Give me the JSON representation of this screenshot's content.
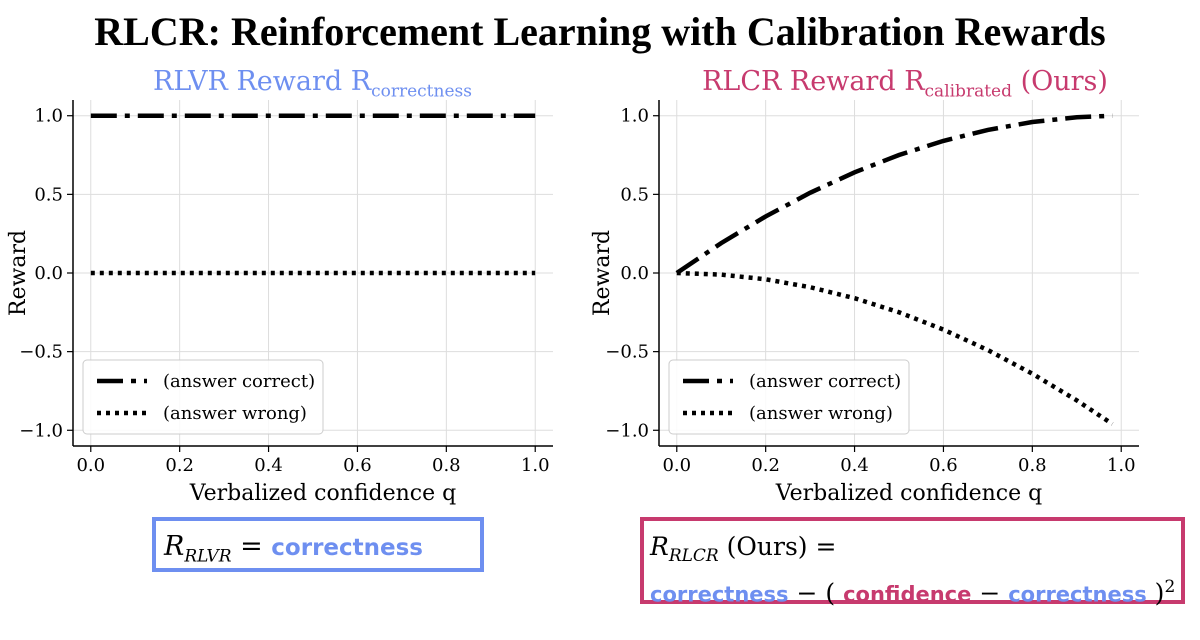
{
  "title": "RLCR: Reinforcement Learning with Calibration Rewards",
  "colors": {
    "blue": "#6e8ff0",
    "pink": "#c73a6e",
    "grid": "#dddddd"
  },
  "chart_data": [
    {
      "type": "line",
      "title_main": "RLVR Reward R",
      "title_sub": "correctness",
      "title_suffix": "",
      "xlabel": "Verbalized confidence q",
      "ylabel": "Reward",
      "xlim": [
        -0.04,
        1.04
      ],
      "ylim": [
        -1.1,
        1.1
      ],
      "xticks": [
        0.0,
        0.2,
        0.4,
        0.6,
        0.8,
        1.0
      ],
      "xtick_labels": [
        "0.0",
        "0.2",
        "0.4",
        "0.6",
        "0.8",
        "1.0"
      ],
      "yticks": [
        -1.0,
        -0.5,
        0.0,
        0.5,
        1.0
      ],
      "ytick_labels": [
        "−1.0",
        "−0.5",
        "0.0",
        "0.5",
        "1.0"
      ],
      "grid": true,
      "legend_position": "lower-left",
      "series": [
        {
          "name": "(answer correct)",
          "style": "dashdot",
          "x": [
            0.0,
            0.2,
            0.4,
            0.6,
            0.8,
            1.0
          ],
          "y": [
            1.0,
            1.0,
            1.0,
            1.0,
            1.0,
            1.0
          ]
        },
        {
          "name": "(answer wrong)",
          "style": "dotted",
          "x": [
            0.0,
            0.2,
            0.4,
            0.6,
            0.8,
            1.0
          ],
          "y": [
            0.0,
            0.0,
            0.0,
            0.0,
            0.0,
            0.0
          ]
        }
      ]
    },
    {
      "type": "line",
      "title_main": "RLCR Reward R",
      "title_sub": "calibrated",
      "title_suffix": " (Ours)",
      "xlabel": "Verbalized confidence q",
      "ylabel": "Reward",
      "xlim": [
        -0.04,
        1.04
      ],
      "ylim": [
        -1.1,
        1.1
      ],
      "xticks": [
        0.0,
        0.2,
        0.4,
        0.6,
        0.8,
        1.0
      ],
      "xtick_labels": [
        "0.0",
        "0.2",
        "0.4",
        "0.6",
        "0.8",
        "1.0"
      ],
      "yticks": [
        -1.0,
        -0.5,
        0.0,
        0.5,
        1.0
      ],
      "ytick_labels": [
        "−1.0",
        "−0.5",
        "0.0",
        "0.5",
        "1.0"
      ],
      "grid": true,
      "legend_position": "lower-left",
      "series": [
        {
          "name": "(answer correct)",
          "style": "dashdot",
          "x": [
            0.0,
            0.1,
            0.2,
            0.3,
            0.4,
            0.5,
            0.6,
            0.7,
            0.8,
            0.9,
            0.98
          ],
          "y": [
            0.0,
            0.19,
            0.36,
            0.51,
            0.64,
            0.75,
            0.84,
            0.91,
            0.96,
            0.99,
            1.0
          ]
        },
        {
          "name": "(answer wrong)",
          "style": "dotted",
          "x": [
            0.0,
            0.1,
            0.2,
            0.3,
            0.4,
            0.5,
            0.6,
            0.7,
            0.8,
            0.9,
            0.98
          ],
          "y": [
            0.0,
            -0.01,
            -0.04,
            -0.09,
            -0.16,
            -0.25,
            -0.36,
            -0.49,
            -0.64,
            -0.81,
            -0.96
          ]
        }
      ]
    }
  ],
  "formulas": {
    "left": {
      "symbol": "R",
      "sub": "RLVR",
      "eq": " = ",
      "term": "correctness"
    },
    "right": {
      "symbol": "R",
      "sub": "RLCR",
      "ours": " (Ours) =",
      "term1": "correctness",
      "minus": " − ( ",
      "term2": "confidence",
      "minus2": " − ",
      "term3": "correctness",
      "close": " )",
      "power": "2"
    }
  }
}
